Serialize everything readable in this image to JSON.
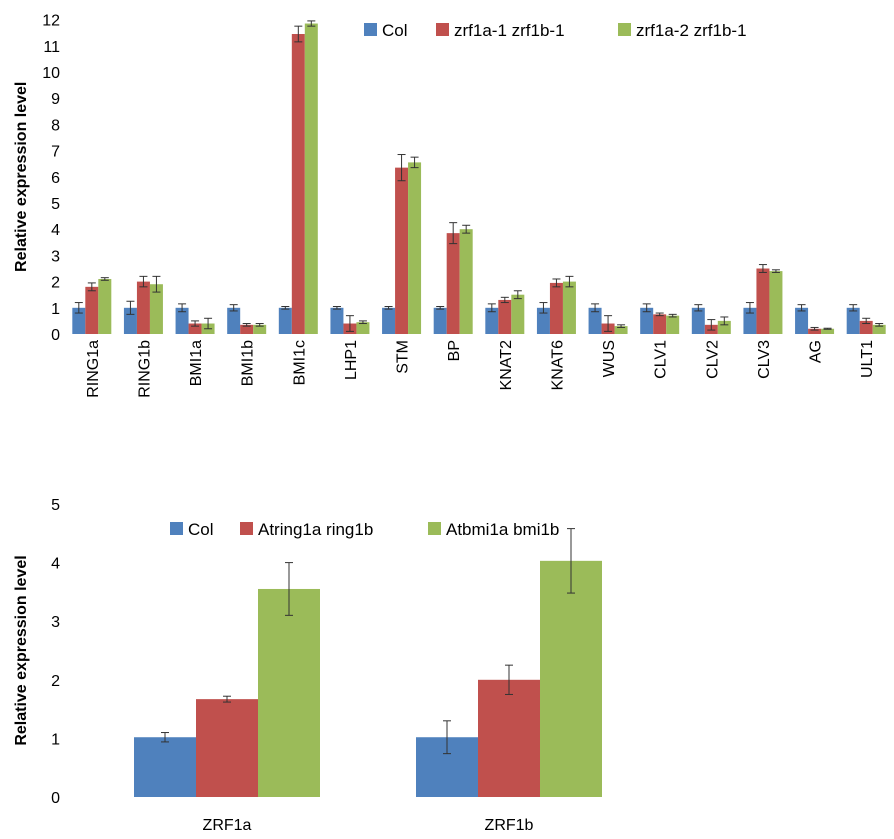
{
  "chart_data": [
    {
      "type": "bar",
      "title": "",
      "xlabel": "",
      "ylabel": "Relative expression level",
      "ylim": [
        0,
        12
      ],
      "yticks": [
        0,
        1,
        2,
        3,
        4,
        5,
        6,
        7,
        8,
        9,
        10,
        11,
        12
      ],
      "grid": false,
      "legend_position": "top-right",
      "categories": [
        "RING1a",
        "RING1b",
        "BMI1a",
        "BMI1b",
        "BMI1c",
        "LHP1",
        "STM",
        "BP",
        "KNAT2",
        "KNAT6",
        "WUS",
        "CLV1",
        "CLV2",
        "CLV3",
        "AG",
        "ULT1"
      ],
      "series": [
        {
          "name": "Col",
          "color": "#4F81BD",
          "values": [
            1.0,
            1.0,
            1.0,
            1.0,
            1.0,
            1.0,
            1.0,
            1.0,
            1.0,
            1.0,
            1.0,
            1.0,
            1.0,
            1.0,
            1.0,
            1.0
          ],
          "errors": [
            0.2,
            0.25,
            0.15,
            0.12,
            0.05,
            0.05,
            0.05,
            0.05,
            0.15,
            0.2,
            0.15,
            0.15,
            0.12,
            0.2,
            0.12,
            0.12
          ]
        },
        {
          "name": "zrf1a-1 zrf1b-1",
          "color": "#C0504D",
          "values": [
            1.8,
            2.0,
            0.4,
            0.35,
            11.45,
            0.4,
            6.35,
            3.85,
            1.3,
            1.95,
            0.4,
            0.75,
            0.35,
            2.5,
            0.2,
            0.5
          ],
          "errors": [
            0.15,
            0.2,
            0.1,
            0.05,
            0.3,
            0.3,
            0.5,
            0.4,
            0.1,
            0.15,
            0.3,
            0.05,
            0.2,
            0.15,
            0.05,
            0.1
          ]
        },
        {
          "name": "zrf1a-2 zrf1b-1",
          "color": "#9BBB59",
          "values": [
            2.1,
            1.9,
            0.4,
            0.35,
            11.85,
            0.45,
            6.55,
            4.0,
            1.5,
            2.0,
            0.3,
            0.7,
            0.5,
            2.4,
            0.2,
            0.35
          ],
          "errors": [
            0.05,
            0.3,
            0.2,
            0.05,
            0.1,
            0.05,
            0.2,
            0.15,
            0.15,
            0.2,
            0.05,
            0.05,
            0.15,
            0.05,
            0.02,
            0.05
          ]
        }
      ]
    },
    {
      "type": "bar",
      "title": "",
      "xlabel": "",
      "ylabel": "Relative expression level",
      "ylim": [
        0,
        5
      ],
      "yticks": [
        0,
        1,
        2,
        3,
        4,
        5
      ],
      "grid": false,
      "legend_position": "top",
      "categories": [
        "ZRF1a",
        "ZRF1b"
      ],
      "series": [
        {
          "name": "Col",
          "color": "#4F81BD",
          "values": [
            1.02,
            1.02
          ],
          "errors": [
            0.08,
            0.28
          ]
        },
        {
          "name": "Atring1a ring1b",
          "color": "#C0504D",
          "values": [
            1.67,
            2.0
          ],
          "errors": [
            0.05,
            0.25
          ]
        },
        {
          "name": "Atbmi1a bmi1b",
          "color": "#9BBB59",
          "values": [
            3.55,
            4.03
          ],
          "errors": [
            0.45,
            0.55
          ]
        }
      ]
    }
  ]
}
